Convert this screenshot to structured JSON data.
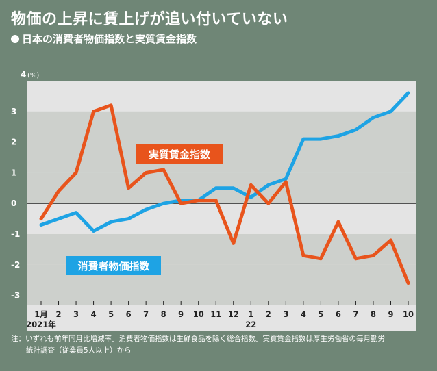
{
  "title": "物価の上昇に賃上げが追い付いていない",
  "subtitle": "日本の消費者物価指数と実質賃金指数",
  "note_line1": "注：いずれも前年同月比増減率。消費者物価指数は生鮮食品を除く総合指数。実質賃金指数は厚生労働省の毎月勤労",
  "note_line2": "統計調査（従業員5人以上）から",
  "colors": {
    "background": "#6f8676",
    "band_light": "#e4e4e4",
    "band_dark": "#cdd0cc",
    "cpi": "#1ea3e4",
    "wage": "#e8541c",
    "axis_text": "#222222"
  },
  "chart_data": {
    "type": "line",
    "ylabel_value": "4",
    "ylabel_unit": "(%)",
    "ylim": [
      -3.3,
      4
    ],
    "yticks": [
      "3",
      "2",
      "1",
      "0",
      "-1",
      "-2",
      "-3"
    ],
    "ytick_values": [
      3,
      2,
      1,
      0,
      -1,
      -2,
      -3
    ],
    "categories": [
      "1月",
      "2",
      "3",
      "4",
      "5",
      "6",
      "7",
      "8",
      "9",
      "10",
      "11",
      "12",
      "1",
      "2",
      "3",
      "4",
      "5",
      "6",
      "7",
      "8",
      "9",
      "10"
    ],
    "year_labels": [
      {
        "index": 0,
        "label": "2021年"
      },
      {
        "index": 12,
        "label": "22"
      }
    ],
    "series": [
      {
        "name": "消費者物価指数",
        "color": "#1ea3e4",
        "values": [
          -0.7,
          -0.5,
          -0.3,
          -0.9,
          -0.6,
          -0.5,
          -0.2,
          0.0,
          0.1,
          0.1,
          0.5,
          0.5,
          0.2,
          0.6,
          0.8,
          2.1,
          2.1,
          2.2,
          2.4,
          2.8,
          3.0,
          3.6
        ]
      },
      {
        "name": "実質賃金指数",
        "color": "#e8541c",
        "values": [
          -0.5,
          0.4,
          1.0,
          3.0,
          3.2,
          0.5,
          1.0,
          1.1,
          0.0,
          0.1,
          0.1,
          -1.3,
          0.6,
          0.0,
          0.7,
          -1.7,
          -1.8,
          -0.6,
          -1.8,
          -1.7,
          -1.2,
          -2.6
        ]
      }
    ]
  }
}
